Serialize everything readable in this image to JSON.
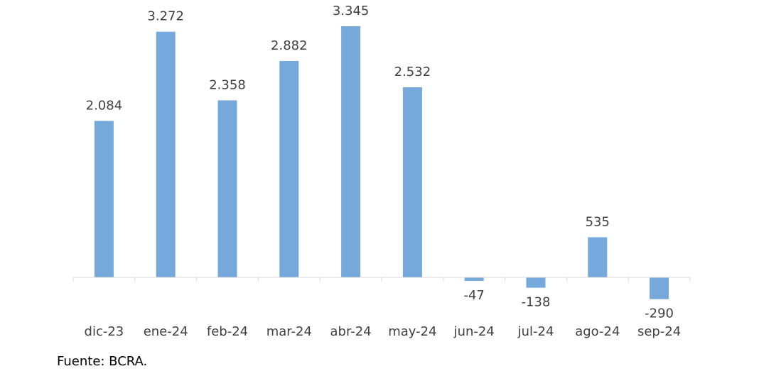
{
  "chart_data": {
    "type": "bar",
    "categories": [
      "dic-23",
      "ene-24",
      "feb-24",
      "mar-24",
      "abr-24",
      "may-24",
      "jun-24",
      "jul-24",
      "ago-24",
      "sep-24"
    ],
    "values": [
      2084,
      3272,
      2358,
      2882,
      3345,
      2532,
      -47,
      -138,
      535,
      -290
    ],
    "value_labels": [
      "2.084",
      "3.272",
      "2.358",
      "2.882",
      "3.345",
      "2.532",
      "-47",
      "-138",
      "535",
      "-290"
    ],
    "color": "#76a9db",
    "source": "Fuente: BCRA."
  }
}
